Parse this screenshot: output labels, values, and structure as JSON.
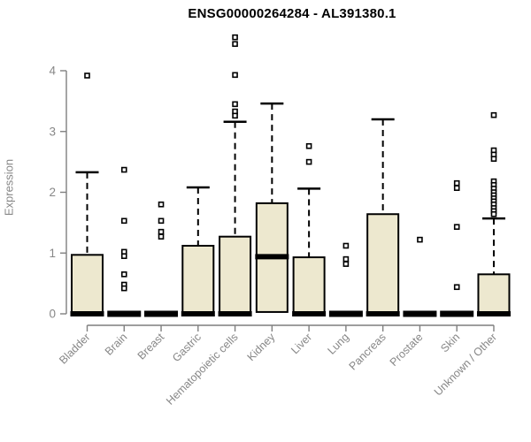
{
  "chart_data": {
    "type": "boxplot",
    "title": "ENSG00000264284 - AL391380.1",
    "ylabel": "Expression",
    "xlabel": "",
    "yticks": [
      0,
      1,
      2,
      3,
      4
    ],
    "ylim": [
      0,
      4.6
    ],
    "grid": false,
    "legend": "none",
    "colors": {
      "box_fill": "#ede8cf",
      "box_stroke": "#000000",
      "median": "#000000",
      "whisker": "#000000",
      "outlier_stroke": "#000000",
      "outlier_fill": "#ffffff",
      "axis": "#7f7f7f",
      "tick_label": "#878787",
      "title": "#000000",
      "background": "#ffffff"
    },
    "categories": [
      "Bladder",
      "Brain",
      "Breast",
      "Gastric",
      "Hematopoietic cells",
      "Kidney",
      "Liver",
      "Lung",
      "Pancreas",
      "Prostate",
      "Skin",
      "Unknown / Other"
    ],
    "series": [
      {
        "name": "Bladder",
        "q1": 0,
        "median": 0,
        "q3": 0.97,
        "whisker_low": 0,
        "whisker_high": 2.33,
        "outliers": [
          3.92
        ]
      },
      {
        "name": "Brain",
        "q1": 0,
        "median": 0,
        "q3": 0,
        "whisker_low": 0,
        "whisker_high": 0,
        "outliers": [
          2.37,
          1.53,
          1.02,
          0.95,
          0.65,
          0.48,
          0.42
        ]
      },
      {
        "name": "Breast",
        "q1": 0,
        "median": 0,
        "q3": 0,
        "whisker_low": 0,
        "whisker_high": 0,
        "outliers": [
          1.8,
          1.53,
          1.35,
          1.27
        ]
      },
      {
        "name": "Gastric",
        "q1": 0,
        "median": 0,
        "q3": 1.12,
        "whisker_low": 0,
        "whisker_high": 2.08,
        "outliers": []
      },
      {
        "name": "Hematopoietic cells",
        "q1": 0,
        "median": 0,
        "q3": 1.27,
        "whisker_low": 0,
        "whisker_high": 3.16,
        "outliers": [
          4.55,
          4.44,
          3.93,
          3.45,
          3.33,
          3.26
        ]
      },
      {
        "name": "Kidney",
        "q1": 0.03,
        "median": 0.94,
        "q3": 1.82,
        "whisker_low": 0.03,
        "whisker_high": 3.46,
        "outliers": []
      },
      {
        "name": "Liver",
        "q1": 0,
        "median": 0,
        "q3": 0.93,
        "whisker_low": 0,
        "whisker_high": 2.06,
        "outliers": [
          2.76,
          2.5
        ]
      },
      {
        "name": "Lung",
        "q1": 0,
        "median": 0,
        "q3": 0,
        "whisker_low": 0,
        "whisker_high": 0,
        "outliers": [
          1.12,
          0.9,
          0.82
        ]
      },
      {
        "name": "Pancreas",
        "q1": 0,
        "median": 0,
        "q3": 1.64,
        "whisker_low": 0,
        "whisker_high": 3.2,
        "outliers": []
      },
      {
        "name": "Prostate",
        "q1": 0,
        "median": 0,
        "q3": 0,
        "whisker_low": 0,
        "whisker_high": 0,
        "outliers": [
          1.22
        ]
      },
      {
        "name": "Skin",
        "q1": 0,
        "median": 0,
        "q3": 0,
        "whisker_low": 0,
        "whisker_high": 0,
        "outliers": [
          2.15,
          2.07,
          1.43,
          0.44
        ]
      },
      {
        "name": "Unknown / Other",
        "q1": 0,
        "median": 0,
        "q3": 0.65,
        "whisker_low": 0,
        "whisker_high": 1.57,
        "outliers": [
          3.27,
          2.69,
          2.62,
          2.55,
          2.18,
          2.12,
          2.06,
          2.0,
          1.95,
          1.9,
          1.85,
          1.8,
          1.74,
          1.69,
          1.64
        ]
      }
    ]
  }
}
